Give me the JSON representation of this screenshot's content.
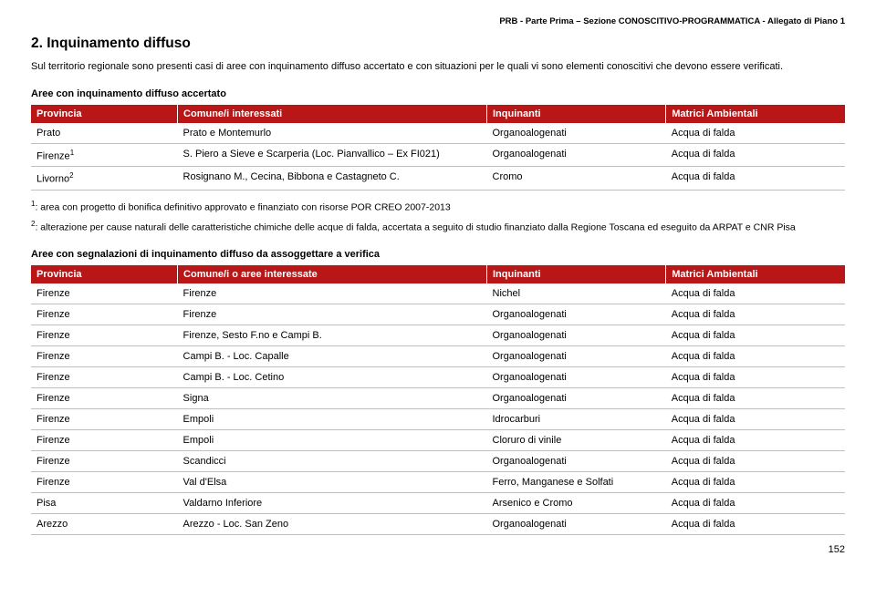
{
  "header": "PRB - Parte Prima – Sezione CONOSCITIVO-PROGRAMMATICA - Allegato di Piano 1",
  "title": "2. Inquinamento diffuso",
  "intro": "Sul territorio regionale sono presenti casi di aree con inquinamento diffuso accertato e con situazioni per le quali vi sono elementi conoscitivi che devono essere verificati.",
  "table1": {
    "caption": "Aree con inquinamento diffuso accertato",
    "columns": [
      "Provincia",
      "Comune/i interessati",
      "Inquinanti",
      "Matrici Ambientali"
    ],
    "rows": [
      {
        "a": "Prato",
        "b": "Prato e Montemurlo",
        "c": "Organoalogenati",
        "d": "Acqua di falda",
        "supA": null
      },
      {
        "a": "Firenze",
        "b": "S. Piero a Sieve e Scarperia (Loc. Pianvallico – Ex FI021)",
        "c": "Organoalogenati",
        "d": "Acqua di falda",
        "supA": "1"
      },
      {
        "a": "Livorno",
        "b": "Rosignano M., Cecina, Bibbona e Castagneto C.",
        "c": "Cromo",
        "d": "Acqua di falda",
        "supA": "2"
      }
    ]
  },
  "footnotes": [
    {
      "sup": "1",
      "text": ": area con progetto di bonifica definitivo approvato e finanziato con risorse POR CREO 2007-2013"
    },
    {
      "sup": "2",
      "text": ": alterazione per cause naturali delle caratteristiche chimiche delle acque di falda, accertata a seguito di studio finanziato dalla Regione Toscana ed eseguito da ARPAT e CNR Pisa"
    }
  ],
  "table2": {
    "caption": "Aree con segnalazioni di inquinamento diffuso da assoggettare a verifica",
    "columns": [
      "Provincia",
      "Comune/i o aree interessate",
      "Inquinanti",
      "Matrici Ambientali"
    ],
    "rows": [
      {
        "a": "Firenze",
        "b": "Firenze",
        "c": "Nichel",
        "d": "Acqua di falda"
      },
      {
        "a": "Firenze",
        "b": "Firenze",
        "c": "Organoalogenati",
        "d": "Acqua di falda"
      },
      {
        "a": "Firenze",
        "b": "Firenze, Sesto F.no e Campi B.",
        "c": "Organoalogenati",
        "d": "Acqua di falda"
      },
      {
        "a": "Firenze",
        "b": "Campi B. - Loc. Capalle",
        "c": "Organoalogenati",
        "d": "Acqua di falda"
      },
      {
        "a": "Firenze",
        "b": "Campi B. - Loc. Cetino",
        "c": "Organoalogenati",
        "d": "Acqua di falda"
      },
      {
        "a": "Firenze",
        "b": "Signa",
        "c": "Organoalogenati",
        "d": "Acqua di falda"
      },
      {
        "a": "Firenze",
        "b": "Empoli",
        "c": "Idrocarburi",
        "d": "Acqua di falda"
      },
      {
        "a": "Firenze",
        "b": "Empoli",
        "c": "Cloruro di vinile",
        "d": "Acqua di falda"
      },
      {
        "a": "Firenze",
        "b": "Scandicci",
        "c": "Organoalogenati",
        "d": "Acqua di falda"
      },
      {
        "a": "Firenze",
        "b": "Val d'Elsa",
        "c": "Ferro, Manganese e Solfati",
        "d": "Acqua di falda"
      },
      {
        "a": "Pisa",
        "b": "Valdarno Inferiore",
        "c": "Arsenico e Cromo",
        "d": "Acqua di falda"
      },
      {
        "a": "Arezzo",
        "b": "Arezzo - Loc. San Zeno",
        "c": "Organoalogenati",
        "d": "Acqua di falda"
      }
    ]
  },
  "pageNum": "152"
}
